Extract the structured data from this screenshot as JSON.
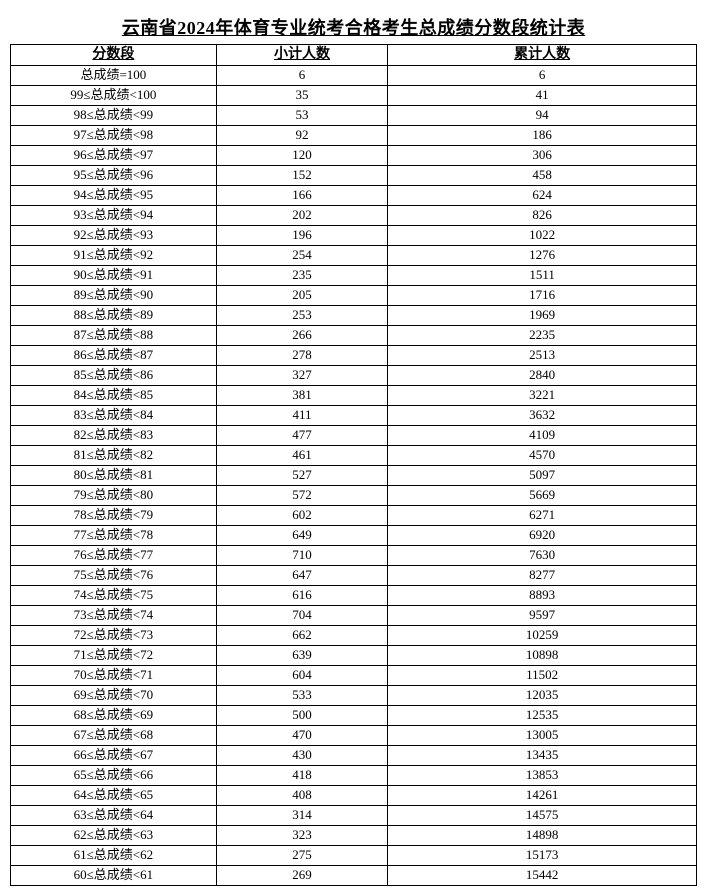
{
  "title": "云南省2024年体育专业统考合格考生总成绩分数段统计表",
  "columns": [
    "分数段",
    "小计人数",
    "累计人数"
  ],
  "rows": [
    [
      "总成绩=100",
      "6",
      "6"
    ],
    [
      "99≤总成绩<100",
      "35",
      "41"
    ],
    [
      "98≤总成绩<99",
      "53",
      "94"
    ],
    [
      "97≤总成绩<98",
      "92",
      "186"
    ],
    [
      "96≤总成绩<97",
      "120",
      "306"
    ],
    [
      "95≤总成绩<96",
      "152",
      "458"
    ],
    [
      "94≤总成绩<95",
      "166",
      "624"
    ],
    [
      "93≤总成绩<94",
      "202",
      "826"
    ],
    [
      "92≤总成绩<93",
      "196",
      "1022"
    ],
    [
      "91≤总成绩<92",
      "254",
      "1276"
    ],
    [
      "90≤总成绩<91",
      "235",
      "1511"
    ],
    [
      "89≤总成绩<90",
      "205",
      "1716"
    ],
    [
      "88≤总成绩<89",
      "253",
      "1969"
    ],
    [
      "87≤总成绩<88",
      "266",
      "2235"
    ],
    [
      "86≤总成绩<87",
      "278",
      "2513"
    ],
    [
      "85≤总成绩<86",
      "327",
      "2840"
    ],
    [
      "84≤总成绩<85",
      "381",
      "3221"
    ],
    [
      "83≤总成绩<84",
      "411",
      "3632"
    ],
    [
      "82≤总成绩<83",
      "477",
      "4109"
    ],
    [
      "81≤总成绩<82",
      "461",
      "4570"
    ],
    [
      "80≤总成绩<81",
      "527",
      "5097"
    ],
    [
      "79≤总成绩<80",
      "572",
      "5669"
    ],
    [
      "78≤总成绩<79",
      "602",
      "6271"
    ],
    [
      "77≤总成绩<78",
      "649",
      "6920"
    ],
    [
      "76≤总成绩<77",
      "710",
      "7630"
    ],
    [
      "75≤总成绩<76",
      "647",
      "8277"
    ],
    [
      "74≤总成绩<75",
      "616",
      "8893"
    ],
    [
      "73≤总成绩<74",
      "704",
      "9597"
    ],
    [
      "72≤总成绩<73",
      "662",
      "10259"
    ],
    [
      "71≤总成绩<72",
      "639",
      "10898"
    ],
    [
      "70≤总成绩<71",
      "604",
      "11502"
    ],
    [
      "69≤总成绩<70",
      "533",
      "12035"
    ],
    [
      "68≤总成绩<69",
      "500",
      "12535"
    ],
    [
      "67≤总成绩<68",
      "470",
      "13005"
    ],
    [
      "66≤总成绩<67",
      "430",
      "13435"
    ],
    [
      "65≤总成绩<66",
      "418",
      "13853"
    ],
    [
      "64≤总成绩<65",
      "408",
      "14261"
    ],
    [
      "63≤总成绩<64",
      "314",
      "14575"
    ],
    [
      "62≤总成绩<63",
      "323",
      "14898"
    ],
    [
      "61≤总成绩<62",
      "275",
      "15173"
    ],
    [
      "60≤总成绩<61",
      "269",
      "15442"
    ]
  ],
  "style": {
    "border_color": "#000000",
    "background_color": "#ffffff",
    "title_fontsize": 18,
    "header_fontsize": 14,
    "cell_fontsize": 13,
    "col_widths_pct": [
      30,
      25,
      45
    ]
  }
}
